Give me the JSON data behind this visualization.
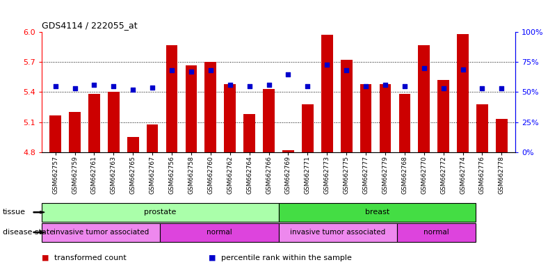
{
  "title": "GDS4114 / 222055_at",
  "samples": [
    "GSM662757",
    "GSM662759",
    "GSM662761",
    "GSM662763",
    "GSM662765",
    "GSM662767",
    "GSM662756",
    "GSM662758",
    "GSM662760",
    "GSM662762",
    "GSM662764",
    "GSM662766",
    "GSM662769",
    "GSM662771",
    "GSM662773",
    "GSM662775",
    "GSM662777",
    "GSM662779",
    "GSM662768",
    "GSM662770",
    "GSM662772",
    "GSM662774",
    "GSM662776",
    "GSM662778"
  ],
  "bar_values": [
    5.17,
    5.2,
    5.38,
    5.4,
    4.95,
    5.08,
    5.87,
    5.67,
    5.7,
    5.48,
    5.18,
    5.43,
    4.82,
    5.28,
    5.97,
    5.72,
    5.48,
    5.48,
    5.38,
    5.87,
    5.52,
    5.98,
    5.28,
    5.13
  ],
  "percentile_values": [
    55,
    53,
    56,
    55,
    52,
    54,
    68,
    67,
    68,
    56,
    55,
    56,
    65,
    55,
    73,
    68,
    55,
    56,
    55,
    70,
    53,
    69,
    53,
    53
  ],
  "ylim_left": [
    4.8,
    6.0
  ],
  "yticks_left": [
    4.8,
    5.1,
    5.4,
    5.7,
    6.0
  ],
  "ylim_right": [
    0,
    100
  ],
  "yticks_right": [
    0,
    25,
    50,
    75,
    100
  ],
  "bar_color": "#cc0000",
  "point_color": "#0000cc",
  "bar_bottom": 4.8,
  "tissue_groups": [
    {
      "label": "prostate",
      "start": 0,
      "end": 12,
      "color": "#aaffaa"
    },
    {
      "label": "breast",
      "start": 12,
      "end": 22,
      "color": "#44dd44"
    }
  ],
  "disease_groups": [
    {
      "label": "invasive tumor associated",
      "start": 0,
      "end": 6,
      "color": "#ee88ee"
    },
    {
      "label": "normal",
      "start": 6,
      "end": 12,
      "color": "#dd44dd"
    },
    {
      "label": "invasive tumor associated",
      "start": 12,
      "end": 18,
      "color": "#ee88ee"
    },
    {
      "label": "normal",
      "start": 18,
      "end": 22,
      "color": "#dd44dd"
    }
  ],
  "tissue_label": "tissue",
  "disease_label": "disease state",
  "legend_items": [
    {
      "label": "transformed count",
      "color": "#cc0000"
    },
    {
      "label": "percentile rank within the sample",
      "color": "#0000cc"
    }
  ]
}
